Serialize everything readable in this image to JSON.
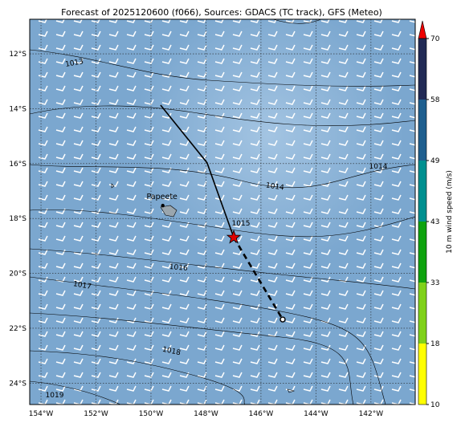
{
  "title": "Forecast of 2025120600 (f066), Sources: GDACS (TC track), GFS (Meteo)",
  "map": {
    "lon_range": [
      -154.41,
      -140.39
    ],
    "lat_range": [
      -10.74,
      -24.78
    ],
    "lon_ticks": [
      {
        "value": -154,
        "label": "154°W"
      },
      {
        "value": -152,
        "label": "152°W"
      },
      {
        "value": -150,
        "label": "150°W"
      },
      {
        "value": -148,
        "label": "148°W"
      },
      {
        "value": -146,
        "label": "146°W"
      },
      {
        "value": -144,
        "label": "144°W"
      },
      {
        "value": -142,
        "label": "142°W"
      }
    ],
    "lat_ticks": [
      {
        "value": -12,
        "label": "12°S"
      },
      {
        "value": -14,
        "label": "14°S"
      },
      {
        "value": -16,
        "label": "16°S"
      },
      {
        "value": -18,
        "label": "18°S"
      },
      {
        "value": -20,
        "label": "20°S"
      },
      {
        "value": -22,
        "label": "22°S"
      },
      {
        "value": -24,
        "label": "24°S"
      }
    ],
    "isobar_labels": [
      1013,
      1014,
      1014,
      1015,
      1016,
      1017,
      1018,
      1019
    ],
    "place": {
      "name": "Papeete",
      "lon": -149.57,
      "lat": -17.53
    },
    "track_past": {
      "lon": [
        -149.65,
        -147.96,
        -146.99
      ],
      "lat": [
        -13.87,
        -15.97,
        -18.69
      ]
    },
    "track_forecast": {
      "lon": [
        -146.99,
        -145.21
      ],
      "lat": [
        -18.69,
        -21.68
      ]
    },
    "current_position": {
      "lon": -146.99,
      "lat": -18.69
    }
  },
  "colorbar": {
    "label": "10 m wind speed (m/s)",
    "levels": [
      10,
      18,
      33,
      43,
      49,
      58,
      70
    ],
    "colors": [
      "#ffff00",
      "#7fd11a",
      "#0fa30f",
      "#009090",
      "#1f5f8f",
      "#212a55"
    ],
    "extend_color": "#ee0000"
  }
}
